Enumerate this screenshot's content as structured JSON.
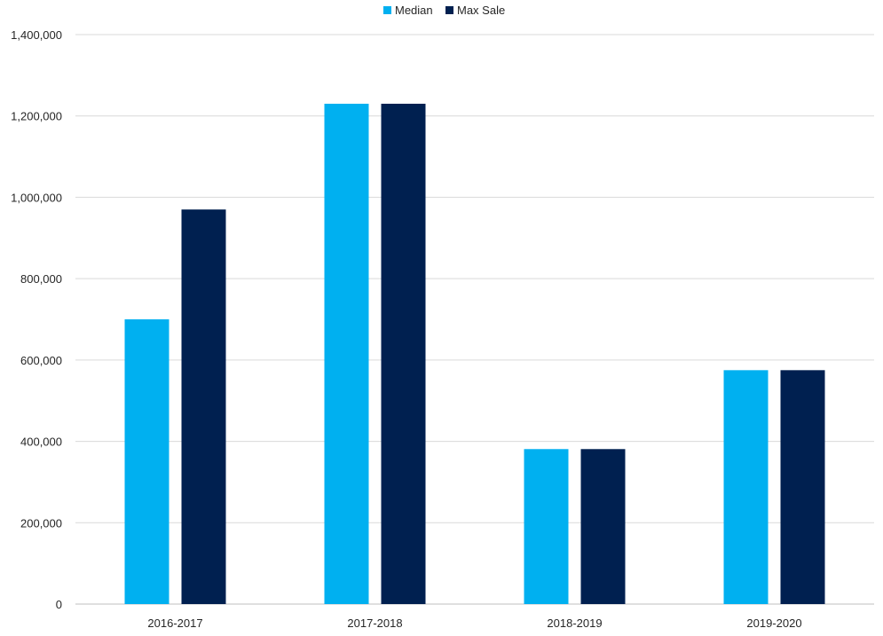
{
  "colors": {
    "median": "#00b0f0",
    "max_sale": "#002050"
  },
  "chart_data": {
    "type": "bar",
    "categories": [
      "2016-2017",
      "2017-2018",
      "2018-2019",
      "2019-2020"
    ],
    "series": [
      {
        "name": "Median",
        "values": [
          700000,
          1230000,
          381000,
          575000
        ]
      },
      {
        "name": "Max Sale",
        "values": [
          970000,
          1230000,
          381000,
          575000
        ]
      }
    ],
    "title": "",
    "xlabel": "",
    "ylabel": "",
    "ylim": [
      0,
      1400000
    ],
    "yticks": [
      0,
      200000,
      400000,
      600000,
      800000,
      1000000,
      1200000,
      1400000
    ],
    "ytick_labels": [
      "0",
      "200,000",
      "400,000",
      "600,000",
      "800,000",
      "1,000,000",
      "1,200,000",
      "1,400,000"
    ],
    "grid": true,
    "legend_position": "top-center"
  }
}
